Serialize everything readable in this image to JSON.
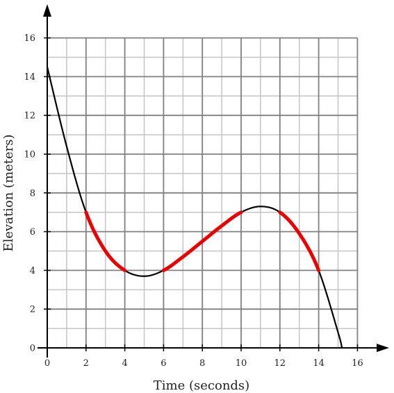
{
  "chart_data": {
    "type": "line",
    "title": "",
    "xlabel": "Time (seconds)",
    "ylabel": "Elevation (meters)",
    "xlim": [
      0,
      16
    ],
    "ylim": [
      0,
      16
    ],
    "x_ticks": [
      0,
      2,
      4,
      6,
      8,
      10,
      12,
      14,
      16
    ],
    "y_ticks": [
      0,
      2,
      4,
      6,
      8,
      10,
      12,
      14,
      16
    ],
    "grid": true,
    "series": [
      {
        "color": "#000000",
        "points": [
          [
            0,
            14.5
          ],
          [
            1,
            10.4
          ],
          [
            2,
            7.0
          ],
          [
            3,
            5.0
          ],
          [
            4,
            4.0
          ],
          [
            5,
            3.7
          ],
          [
            6,
            4.0
          ],
          [
            7,
            4.7
          ],
          [
            8,
            5.5
          ],
          [
            9,
            6.3
          ],
          [
            10,
            7.0
          ],
          [
            11,
            7.3
          ],
          [
            12,
            7.0
          ],
          [
            13,
            5.9
          ],
          [
            14,
            4.0
          ],
          [
            15,
            0.8
          ],
          [
            15.2,
            0
          ]
        ]
      }
    ],
    "highlighted_intervals": [
      {
        "color": "#ee0000",
        "x": [
          2,
          4
        ]
      },
      {
        "color": "#ee0000",
        "x": [
          6,
          10
        ]
      },
      {
        "color": "#ee0000",
        "x": [
          12,
          14
        ]
      }
    ]
  }
}
